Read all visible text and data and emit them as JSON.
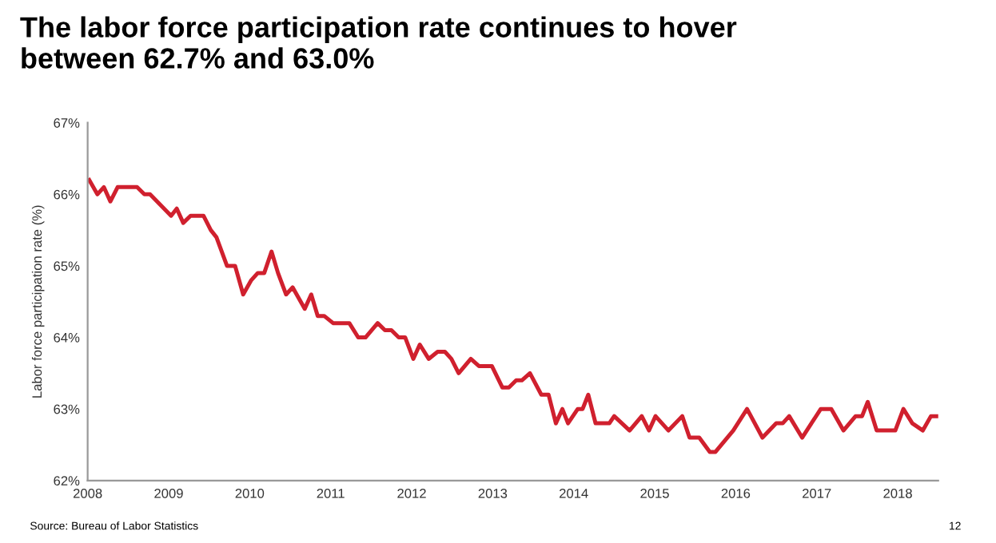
{
  "chart_data": {
    "type": "line",
    "title": "The labor force participation rate continues to hover\nbetween 62.7% and 63.0%",
    "ylabel": "Labor force participation rate (%)",
    "annotations": [
      "Source: Bureau of Labor Statistics",
      "12"
    ],
    "x": [
      2008.02,
      2008.12,
      2008.2,
      2008.28,
      2008.37,
      2008.61,
      2008.7,
      2008.77,
      2009.03,
      2009.1,
      2009.18,
      2009.27,
      2009.43,
      2009.52,
      2009.59,
      2009.72,
      2009.82,
      2009.92,
      2010.02,
      2010.1,
      2010.18,
      2010.27,
      2010.35,
      2010.45,
      2010.53,
      2010.68,
      2010.76,
      2010.84,
      2010.92,
      2011.03,
      2011.23,
      2011.34,
      2011.43,
      2011.58,
      2011.67,
      2011.75,
      2011.84,
      2011.92,
      2012.02,
      2012.1,
      2012.21,
      2012.32,
      2012.41,
      2012.49,
      2012.58,
      2012.73,
      2012.83,
      2012.99,
      2013.12,
      2013.2,
      2013.29,
      2013.36,
      2013.46,
      2013.6,
      2013.69,
      2013.78,
      2013.86,
      2013.93,
      2014.05,
      2014.11,
      2014.18,
      2014.27,
      2014.44,
      2014.5,
      2014.69,
      2014.84,
      2014.93,
      2015.01,
      2015.17,
      2015.34,
      2015.43,
      2015.55,
      2015.68,
      2015.75,
      2015.97,
      2016.14,
      2016.33,
      2016.5,
      2016.58,
      2016.66,
      2016.82,
      2017.05,
      2017.18,
      2017.33,
      2017.48,
      2017.56,
      2017.63,
      2017.74,
      2017.97,
      2018.07,
      2018.18,
      2018.31,
      2018.41,
      2018.48
    ],
    "series": [
      {
        "color": "#d0202e",
        "values": [
          66.2,
          66.0,
          66.1,
          65.9,
          66.1,
          66.1,
          66.0,
          66.0,
          65.7,
          65.8,
          65.6,
          65.7,
          65.7,
          65.5,
          65.4,
          65.0,
          65.0,
          64.6,
          64.8,
          64.9,
          64.9,
          65.2,
          64.9,
          64.6,
          64.7,
          64.4,
          64.6,
          64.3,
          64.3,
          64.2,
          64.2,
          64.0,
          64.0,
          64.2,
          64.1,
          64.1,
          64.0,
          64.0,
          63.7,
          63.9,
          63.7,
          63.8,
          63.8,
          63.7,
          63.5,
          63.7,
          63.6,
          63.6,
          63.3,
          63.3,
          63.4,
          63.4,
          63.5,
          63.2,
          63.2,
          62.8,
          63.0,
          62.8,
          63.0,
          63.0,
          63.2,
          62.8,
          62.8,
          62.9,
          62.7,
          62.9,
          62.7,
          62.9,
          62.7,
          62.9,
          62.6,
          62.6,
          62.4,
          62.4,
          62.7,
          63.0,
          62.6,
          62.8,
          62.8,
          62.9,
          62.6,
          63.0,
          63.0,
          62.7,
          62.9,
          62.9,
          63.1,
          62.7,
          62.7,
          63.0,
          62.8,
          62.7,
          62.9,
          62.9
        ]
      }
    ],
    "xlim": [
      2008,
      2018.5
    ],
    "xticks": [
      2008,
      2009,
      2010,
      2011,
      2012,
      2013,
      2014,
      2015,
      2016,
      2017,
      2018
    ],
    "ylim": [
      62,
      67
    ],
    "yticks": [
      {
        "value": 62,
        "label": "62%"
      },
      {
        "value": 63,
        "label": "63%"
      },
      {
        "value": 64,
        "label": "64%"
      },
      {
        "value": 65,
        "label": "65%"
      },
      {
        "value": 66,
        "label": "66%"
      },
      {
        "value": 67,
        "label": "67%"
      }
    ],
    "grid": false,
    "legend": false,
    "marker": "none",
    "line_style": "solid"
  }
}
